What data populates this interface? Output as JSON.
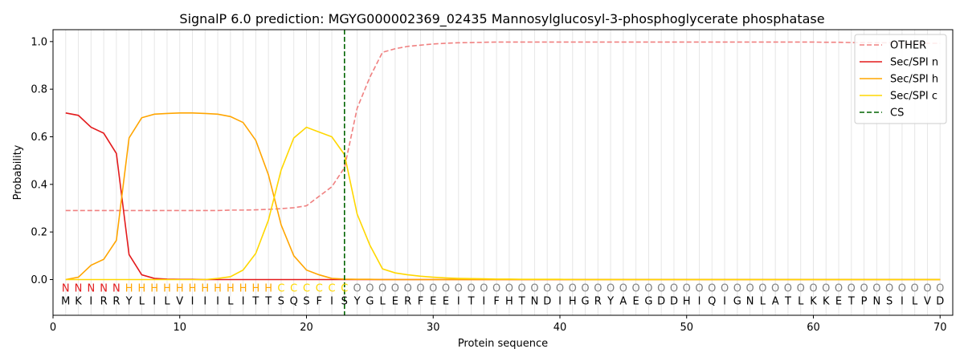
{
  "chart_data": {
    "type": "line",
    "title": "SignalP 6.0 prediction: MGYG000002369_02435 Mannosylglucosyl-3-phosphoglycerate phosphatase",
    "xlabel": "Protein sequence",
    "ylabel": "Probability",
    "xlim": [
      0,
      71
    ],
    "ylim": [
      -0.15,
      1.05
    ],
    "xticks": [
      0,
      10,
      20,
      30,
      40,
      50,
      60,
      70
    ],
    "yticks": [
      0.0,
      0.2,
      0.4,
      0.6,
      0.8,
      1.0
    ],
    "ytick_labels": [
      "0.0",
      "0.2",
      "0.4",
      "0.6",
      "0.8",
      "1.0"
    ],
    "grid": "vertical lines at each residue",
    "legend_position": "top-right",
    "x": [
      1,
      2,
      3,
      4,
      5,
      6,
      7,
      8,
      9,
      10,
      11,
      12,
      13,
      14,
      15,
      16,
      17,
      18,
      19,
      20,
      21,
      22,
      23,
      24,
      25,
      26,
      27,
      28,
      29,
      30,
      31,
      32,
      33,
      34,
      35,
      36,
      37,
      38,
      39,
      40,
      41,
      42,
      43,
      44,
      45,
      46,
      47,
      48,
      49,
      50,
      51,
      52,
      53,
      54,
      55,
      56,
      57,
      58,
      59,
      60,
      61,
      62,
      63,
      64,
      65,
      66,
      67,
      68,
      69,
      70
    ],
    "series": [
      {
        "name": "OTHER",
        "color": "#f08080",
        "style": "dashed",
        "values": [
          0.29,
          0.29,
          0.29,
          0.29,
          0.29,
          0.29,
          0.29,
          0.29,
          0.29,
          0.29,
          0.29,
          0.29,
          0.29,
          0.292,
          0.292,
          0.293,
          0.295,
          0.298,
          0.302,
          0.31,
          0.35,
          0.39,
          0.47,
          0.72,
          0.85,
          0.955,
          0.97,
          0.98,
          0.985,
          0.99,
          0.993,
          0.995,
          0.996,
          0.997,
          0.998,
          0.998,
          0.998,
          0.998,
          0.998,
          0.998,
          0.998,
          0.998,
          0.998,
          0.998,
          0.998,
          0.998,
          0.998,
          0.998,
          0.998,
          0.998,
          0.998,
          0.998,
          0.998,
          0.998,
          0.998,
          0.998,
          0.998,
          0.998,
          0.998,
          0.998,
          0.997,
          0.997,
          0.996,
          0.996,
          0.995,
          0.995,
          0.994,
          0.994,
          0.993,
          0.993
        ]
      },
      {
        "name": "Sec/SPI n",
        "color": "#e31a1c",
        "style": "solid",
        "values": [
          0.7,
          0.69,
          0.64,
          0.615,
          0.53,
          0.105,
          0.02,
          0.005,
          0.002,
          0.001,
          0.001,
          0,
          0,
          0,
          0,
          0,
          0,
          0,
          0,
          0,
          0,
          0,
          0,
          0,
          0,
          0,
          0,
          0,
          0,
          0,
          0,
          0,
          0,
          0,
          0,
          0,
          0,
          0,
          0,
          0,
          0,
          0,
          0,
          0,
          0,
          0,
          0,
          0,
          0,
          0,
          0,
          0,
          0,
          0,
          0,
          0,
          0,
          0,
          0,
          0,
          0,
          0,
          0,
          0,
          0,
          0,
          0,
          0,
          0,
          0
        ]
      },
      {
        "name": "Sec/SPI h",
        "color": "#ffa500",
        "style": "solid",
        "values": [
          0.0,
          0.01,
          0.06,
          0.085,
          0.165,
          0.595,
          0.68,
          0.695,
          0.698,
          0.7,
          0.7,
          0.698,
          0.695,
          0.685,
          0.66,
          0.585,
          0.44,
          0.23,
          0.1,
          0.04,
          0.02,
          0.005,
          0.002,
          0.001,
          0.001,
          0,
          0,
          0,
          0,
          0,
          0,
          0,
          0,
          0,
          0,
          0,
          0,
          0,
          0,
          0,
          0,
          0,
          0,
          0,
          0,
          0,
          0,
          0,
          0,
          0,
          0,
          0,
          0,
          0,
          0,
          0,
          0,
          0,
          0,
          0,
          0,
          0,
          0,
          0,
          0,
          0,
          0,
          0,
          0,
          0
        ]
      },
      {
        "name": "Sec/SPI c",
        "color": "#ffd700",
        "style": "solid",
        "values": [
          0,
          0,
          0,
          0,
          0,
          0,
          0,
          0,
          0,
          0,
          0,
          0,
          0.005,
          0.012,
          0.04,
          0.11,
          0.25,
          0.46,
          0.595,
          0.64,
          0.62,
          0.6,
          0.525,
          0.275,
          0.145,
          0.045,
          0.028,
          0.02,
          0.014,
          0.01,
          0.007,
          0.005,
          0.004,
          0.003,
          0.002,
          0.002,
          0.001,
          0.001,
          0.001,
          0.001,
          0,
          0,
          0,
          0,
          0,
          0,
          0,
          0,
          0,
          0,
          0,
          0,
          0,
          0,
          0,
          0,
          0,
          0,
          0,
          0,
          0,
          0,
          0,
          0,
          0,
          0,
          0,
          0,
          0,
          0
        ]
      }
    ],
    "cs": {
      "name": "CS",
      "x": 23,
      "color": "#006400",
      "style": "dashed"
    },
    "sequence": [
      "M",
      "K",
      "I",
      "R",
      "R",
      "Y",
      "L",
      "I",
      "L",
      "V",
      "I",
      "I",
      "I",
      "L",
      "I",
      "T",
      "T",
      "S",
      "Q",
      "S",
      "F",
      "I",
      "S",
      "Y",
      "G",
      "L",
      "E",
      "R",
      "F",
      "E",
      "E",
      "I",
      "T",
      "I",
      "F",
      "H",
      "T",
      "N",
      "D",
      "I",
      "H",
      "G",
      "R",
      "Y",
      "A",
      "E",
      "G",
      "D",
      "D",
      "H",
      "I",
      "Q",
      "I",
      "G",
      "N",
      "L",
      "A",
      "T",
      "L",
      "K",
      "K",
      "E",
      "T",
      "P",
      "N",
      "S",
      "I",
      "L",
      "V",
      "D"
    ],
    "region_labels": [
      "N",
      "N",
      "N",
      "N",
      "N",
      "H",
      "H",
      "H",
      "H",
      "H",
      "H",
      "H",
      "H",
      "H",
      "H",
      "H",
      "H",
      "C",
      "C",
      "C",
      "C",
      "C",
      "C",
      "O",
      "O",
      "O",
      "O",
      "O",
      "O",
      "O",
      "O",
      "O",
      "O",
      "O",
      "O",
      "O",
      "O",
      "O",
      "O",
      "O",
      "O",
      "O",
      "O",
      "O",
      "O",
      "O",
      "O",
      "O",
      "O",
      "O",
      "O",
      "O",
      "O",
      "O",
      "O",
      "O",
      "O",
      "O",
      "O",
      "O",
      "O",
      "O",
      "O",
      "O",
      "O",
      "O",
      "O",
      "O",
      "O",
      "O"
    ],
    "region_colors": {
      "N": "#e31a1c",
      "H": "#ffa500",
      "C": "#ffd700",
      "O": "#808080"
    }
  }
}
